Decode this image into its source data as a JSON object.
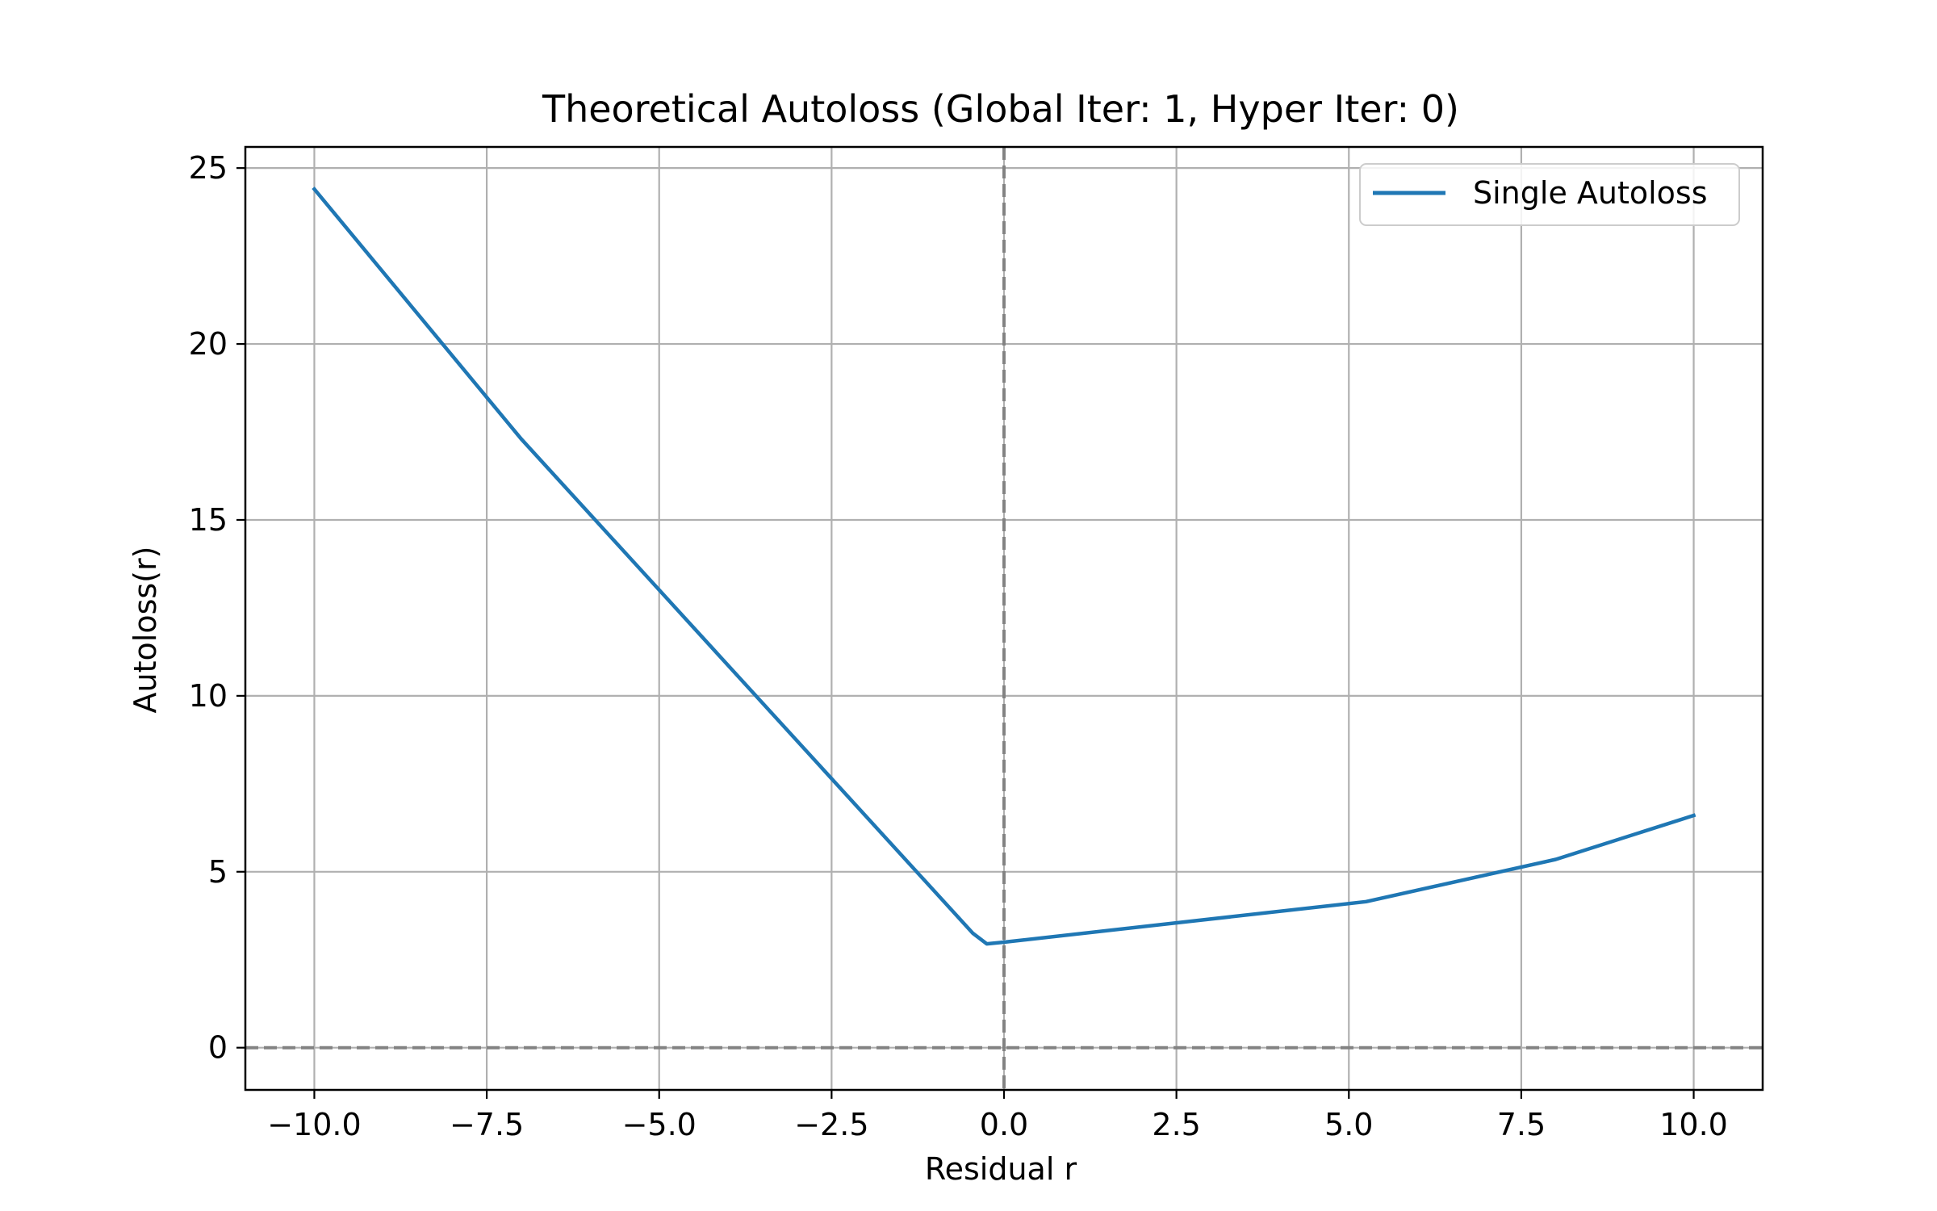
{
  "chart_data": {
    "type": "line",
    "title": "Theoretical Autoloss (Global Iter: 1, Hyper Iter: 0)",
    "xlabel": "Residual r",
    "ylabel": "Autoloss(r)",
    "xlim": [
      -11.0,
      11.0
    ],
    "ylim": [
      -1.2,
      25.6
    ],
    "xticks": [
      -10.0,
      -7.5,
      -5.0,
      -2.5,
      0.0,
      2.5,
      5.0,
      7.5,
      10.0
    ],
    "xtick_labels": [
      "−10.0",
      "−7.5",
      "−5.0",
      "−2.5",
      "0.0",
      "2.5",
      "5.0",
      "7.5",
      "10.0"
    ],
    "yticks": [
      0,
      5,
      10,
      15,
      20,
      25
    ],
    "ytick_labels": [
      "0",
      "5",
      "10",
      "15",
      "20",
      "25"
    ],
    "grid": true,
    "legend_position": "top-right",
    "reference_lines": [
      {
        "orientation": "horizontal",
        "value": 0,
        "style": "dashed",
        "color": "#808080"
      },
      {
        "orientation": "vertical",
        "value": 0,
        "style": "dashed",
        "color": "#808080"
      }
    ],
    "series": [
      {
        "name": "Single Autoloss",
        "color": "#1f77b4",
        "x": [
          -10.0,
          -7.0,
          -0.45,
          -0.25,
          0.0,
          5.25,
          8.0,
          10.0
        ],
        "y": [
          24.4,
          17.3,
          3.25,
          2.95,
          3.0,
          4.15,
          5.35,
          6.6
        ]
      }
    ]
  }
}
